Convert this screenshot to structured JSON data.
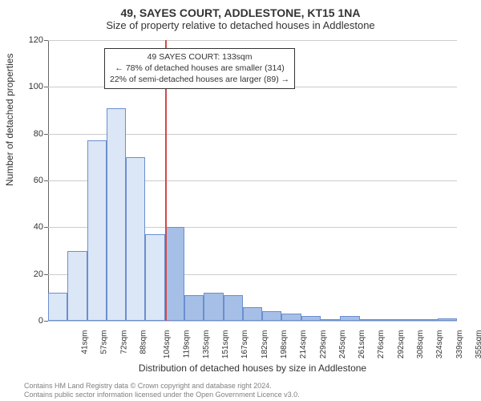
{
  "title": "49, SAYES COURT, ADDLESTONE, KT15 1NA",
  "subtitle": "Size of property relative to detached houses in Addlestone",
  "y_axis_label": "Number of detached properties",
  "x_axis_label": "Distribution of detached houses by size in Addlestone",
  "chart": {
    "type": "histogram",
    "ylim": [
      0,
      120
    ],
    "ytick_step": 20,
    "yticks": [
      0,
      20,
      40,
      60,
      80,
      100,
      120
    ],
    "grid_color": "#cccccc",
    "background_color": "#ffffff",
    "axis_color": "#666666",
    "bar_border_color": "#6b8fcf",
    "bar_fill_light": "#dbe6f6",
    "bar_fill_dark": "#a5bfe6",
    "marker_color": "#d14a4a",
    "marker_index": 6,
    "categories": [
      "41sqm",
      "57sqm",
      "72sqm",
      "88sqm",
      "104sqm",
      "119sqm",
      "135sqm",
      "151sqm",
      "167sqm",
      "182sqm",
      "198sqm",
      "214sqm",
      "229sqm",
      "245sqm",
      "261sqm",
      "276sqm",
      "292sqm",
      "308sqm",
      "324sqm",
      "339sqm",
      "355sqm"
    ],
    "values": [
      12,
      30,
      77,
      91,
      70,
      37,
      40,
      11,
      12,
      11,
      6,
      4,
      3,
      2,
      0,
      2,
      0,
      0,
      0,
      0,
      1
    ],
    "title_fontsize": 14,
    "subtitle_fontsize": 13,
    "label_fontsize": 12,
    "tick_fontsize": 11
  },
  "annotation": {
    "line1": "49 SAYES COURT: 133sqm",
    "line2": "← 78% of detached houses are smaller (314)",
    "line3": "22% of semi-detached houses are larger (89) →"
  },
  "footer": {
    "line1": "Contains HM Land Registry data © Crown copyright and database right 2024.",
    "line2": "Contains public sector information licensed under the Open Government Licence v3.0."
  }
}
